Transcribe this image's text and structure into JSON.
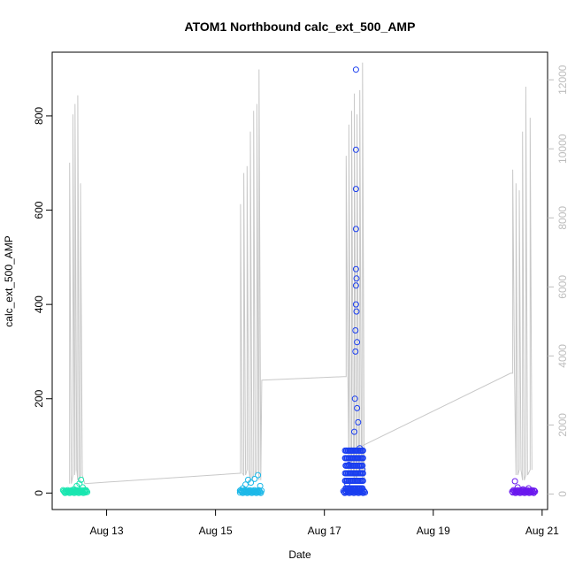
{
  "chart_data": {
    "type": "scatter",
    "title": "ATOM1 Northbound calc_ext_500_AMP",
    "xlabel": "Date",
    "ylabel": "calc_ext_500_AMP",
    "x_ticks": [
      "Aug 13",
      "Aug 15",
      "Aug 17",
      "Aug 19",
      "Aug 21"
    ],
    "x_tick_days": [
      13,
      15,
      17,
      19,
      21
    ],
    "xlim_days": [
      12.0,
      21.1
    ],
    "y_ticks": [
      0,
      200,
      400,
      600,
      800
    ],
    "ylim": [
      -35,
      935
    ],
    "y2_ticks": [
      0,
      2000,
      4000,
      6000,
      8000,
      10000,
      12000
    ],
    "y2lim": [
      -450,
      12800
    ],
    "grid": false,
    "colors": {
      "cluster1": "#19e6b0",
      "cluster2": "#1cb8e8",
      "cluster3": "#1a3ef0",
      "cluster4": "#6a18ee",
      "line": "#c8c8c8"
    },
    "series": [
      {
        "values": [
          {
            "x": 12.33,
            "y": 5
          },
          {
            "x": 12.36,
            "y": 3
          },
          {
            "x": 12.4,
            "y": 8
          },
          {
            "x": 12.45,
            "y": 15
          },
          {
            "x": 12.5,
            "y": 20
          },
          {
            "x": 12.53,
            "y": 28
          },
          {
            "x": 12.56,
            "y": 12
          },
          {
            "x": 12.6,
            "y": 6
          },
          {
            "x": 15.45,
            "y": 5
          },
          {
            "x": 15.5,
            "y": 10
          },
          {
            "x": 15.55,
            "y": 18
          },
          {
            "x": 15.6,
            "y": 28
          },
          {
            "x": 15.65,
            "y": 22
          },
          {
            "x": 15.72,
            "y": 30
          },
          {
            "x": 15.78,
            "y": 38
          },
          {
            "x": 15.82,
            "y": 15
          },
          {
            "x": 17.42,
            "y": 20
          },
          {
            "x": 17.45,
            "y": 60
          },
          {
            "x": 17.5,
            "y": 90
          },
          {
            "x": 17.55,
            "y": 130
          },
          {
            "x": 17.56,
            "y": 200
          },
          {
            "x": 17.57,
            "y": 300
          },
          {
            "x": 17.57,
            "y": 345
          },
          {
            "x": 17.58,
            "y": 400
          },
          {
            "x": 17.58,
            "y": 440
          },
          {
            "x": 17.58,
            "y": 475
          },
          {
            "x": 17.58,
            "y": 560
          },
          {
            "x": 17.58,
            "y": 645
          },
          {
            "x": 17.58,
            "y": 728
          },
          {
            "x": 17.58,
            "y": 898
          },
          {
            "x": 17.59,
            "y": 455
          },
          {
            "x": 17.59,
            "y": 385
          },
          {
            "x": 17.6,
            "y": 320
          },
          {
            "x": 17.6,
            "y": 180
          },
          {
            "x": 17.62,
            "y": 150
          },
          {
            "x": 17.65,
            "y": 95
          },
          {
            "x": 17.7,
            "y": 50
          },
          {
            "x": 20.5,
            "y": 25
          },
          {
            "x": 20.55,
            "y": 12
          },
          {
            "x": 20.65,
            "y": 8
          },
          {
            "x": 20.75,
            "y": 10
          },
          {
            "x": 20.85,
            "y": 5
          }
        ]
      }
    ]
  }
}
